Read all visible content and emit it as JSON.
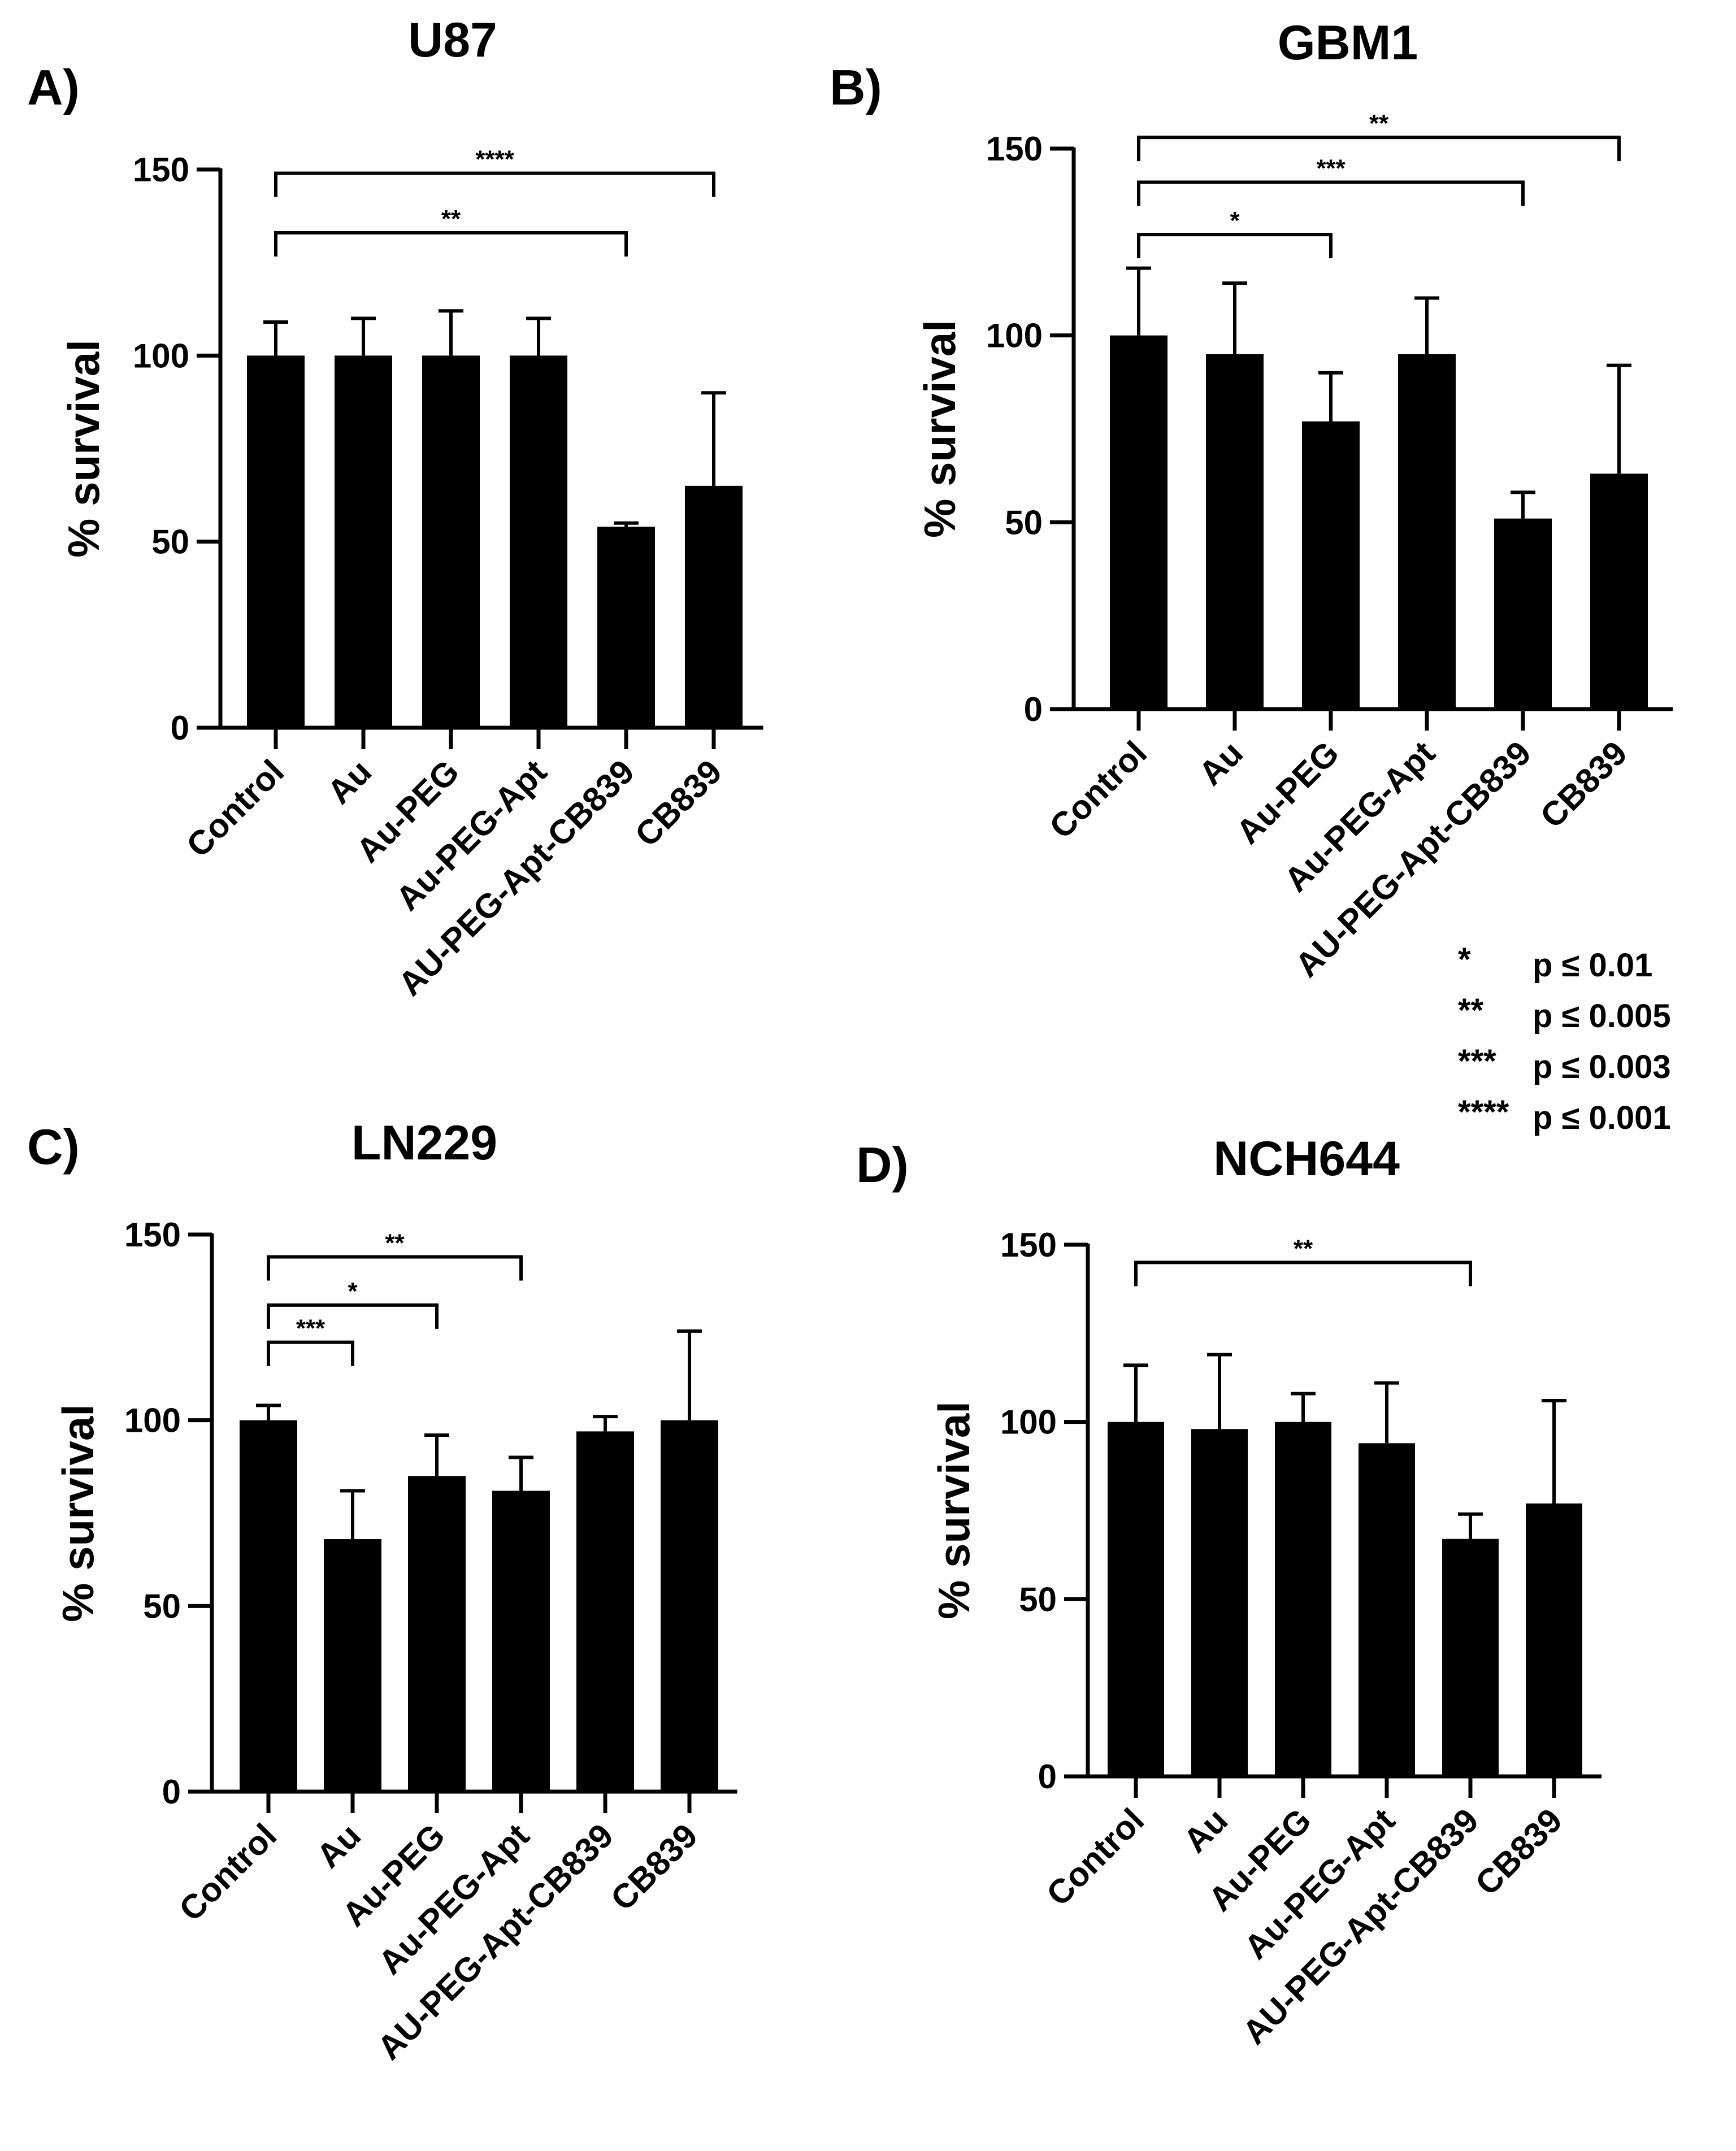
{
  "legend": {
    "entries": [
      {
        "stars": "*",
        "text": "p ≤ 0.01"
      },
      {
        "stars": "**",
        "text": "p ≤ 0.005"
      },
      {
        "stars": "***",
        "text": "p ≤ 0.003"
      },
      {
        "stars": "****",
        "text": "p ≤ 0.001"
      }
    ]
  },
  "chart_data": [
    {
      "type": "bar",
      "panel": "A)",
      "title": "U87",
      "xlabel": "",
      "ylabel": "% survival",
      "ylim": [
        0,
        150
      ],
      "yticks": [
        0,
        50,
        100,
        150
      ],
      "bar_color": "#000000",
      "categories": [
        "Control",
        "Au",
        "Au-PEG",
        "Au-PEG-Apt",
        "AU-PEG-Apt-CB839",
        "CB839"
      ],
      "values": [
        100,
        100,
        100,
        100,
        54,
        65
      ],
      "errors": [
        9,
        10,
        12,
        10,
        1,
        25
      ],
      "significance": [
        {
          "from": 0,
          "to": 5,
          "label": "****",
          "y": 149
        },
        {
          "from": 0,
          "to": 4,
          "label": "**",
          "y": 133
        }
      ]
    },
    {
      "type": "bar",
      "panel": "B)",
      "title": "GBM1",
      "xlabel": "",
      "ylabel": "% survival",
      "ylim": [
        0,
        150
      ],
      "yticks": [
        0,
        50,
        100,
        150
      ],
      "bar_color": "#000000",
      "categories": [
        "Control",
        "Au",
        "Au-PEG",
        "Au-PEG-Apt",
        "AU-PEG-Apt-CB839",
        "CB839"
      ],
      "values": [
        100,
        95,
        77,
        95,
        51,
        63
      ],
      "errors": [
        18,
        19,
        13,
        15,
        7,
        29
      ],
      "significance": [
        {
          "from": 0,
          "to": 5,
          "label": "**",
          "y": 153
        },
        {
          "from": 0,
          "to": 4,
          "label": "***",
          "y": 141
        },
        {
          "from": 0,
          "to": 2,
          "label": "*",
          "y": 127
        }
      ]
    },
    {
      "type": "bar",
      "panel": "C)",
      "title": "LN229",
      "xlabel": "",
      "ylabel": "% survival",
      "ylim": [
        0,
        150
      ],
      "yticks": [
        0,
        50,
        100,
        150
      ],
      "bar_color": "#000000",
      "categories": [
        "Control",
        "Au",
        "Au-PEG",
        "Au-PEG-Apt",
        "AU-PEG-Apt-CB839",
        "CB839"
      ],
      "values": [
        100,
        68,
        85,
        81,
        97,
        100
      ],
      "errors": [
        4,
        13,
        11,
        9,
        4,
        24
      ],
      "significance": [
        {
          "from": 0,
          "to": 3,
          "label": "**",
          "y": 144
        },
        {
          "from": 0,
          "to": 2,
          "label": "*",
          "y": 131
        },
        {
          "from": 0,
          "to": 1,
          "label": "***",
          "y": 121
        }
      ]
    },
    {
      "type": "bar",
      "panel": "D)",
      "title": "NCH644",
      "xlabel": "",
      "ylabel": "% survival",
      "ylim": [
        0,
        150
      ],
      "yticks": [
        0,
        50,
        100,
        150
      ],
      "bar_color": "#000000",
      "categories": [
        "Control",
        "Au",
        "Au-PEG",
        "Au-PEG-Apt",
        "AU-PEG-Apt-CB839",
        "CB839"
      ],
      "values": [
        100,
        98,
        100,
        94,
        67,
        77
      ],
      "errors": [
        16,
        21,
        8,
        17,
        7,
        29
      ],
      "significance": [
        {
          "from": 0,
          "to": 4,
          "label": "**",
          "y": 145
        }
      ]
    }
  ]
}
